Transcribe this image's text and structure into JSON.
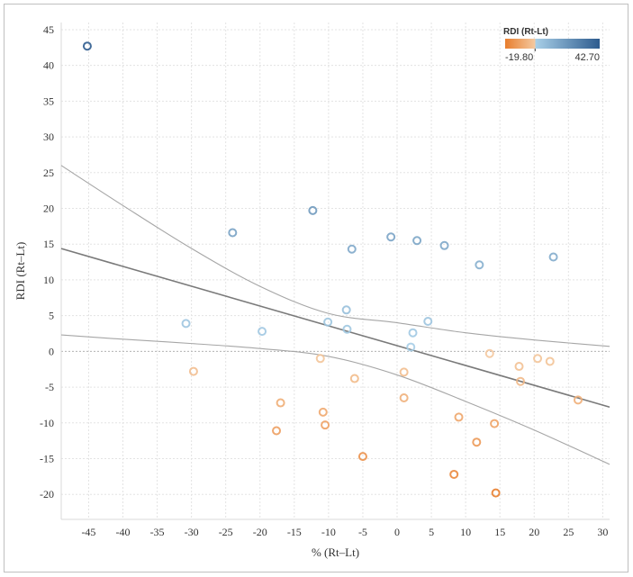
{
  "chart_data": {
    "type": "scatter",
    "title": "",
    "xlabel": "% (Rt–Lt)",
    "ylabel": "RDI (Rt–Lt)",
    "xlim": [
      -49,
      31
    ],
    "ylim": [
      -23.5,
      46
    ],
    "xticks": [
      -45,
      -40,
      -35,
      -30,
      -25,
      -20,
      -15,
      -10,
      -5,
      0,
      5,
      10,
      15,
      20,
      25,
      30
    ],
    "yticks": [
      -20,
      -15,
      -10,
      -5,
      0,
      5,
      10,
      15,
      20,
      25,
      30,
      35,
      40,
      45
    ],
    "xtick_labels": [
      "-45",
      "-40",
      "-35",
      "-30",
      "-25",
      "-20",
      "-15",
      "-10",
      "-5",
      "0",
      "5",
      "10",
      "15",
      "20",
      "25",
      "30"
    ],
    "ytick_labels": [
      "-20",
      "-15",
      "-10",
      "-5",
      "0",
      "5",
      "10",
      "15",
      "20",
      "25",
      "30",
      "35",
      "40",
      "45"
    ],
    "grid": true,
    "series": [
      {
        "name": "RDI (Rt-Lt)",
        "x": [
          -45.2,
          -24.0,
          -12.3,
          -6.6,
          -0.9,
          2.9,
          6.9,
          12.0,
          22.8,
          -30.8,
          -19.7,
          -10.1,
          -7.4,
          -7.3,
          2.3,
          4.5,
          2.0,
          13.5,
          -11.2,
          -29.7,
          -6.2,
          1.0,
          17.8,
          20.5,
          22.3,
          18.0,
          -17.0,
          1.0,
          26.4,
          -10.8,
          -10.5,
          -17.6,
          9.0,
          14.2,
          11.6,
          -5.0,
          8.3,
          14.4
        ],
        "y": [
          42.7,
          16.6,
          19.7,
          14.3,
          16.0,
          15.5,
          14.8,
          12.1,
          13.2,
          3.9,
          2.8,
          4.1,
          5.8,
          3.1,
          2.6,
          4.2,
          0.6,
          -0.3,
          -1.0,
          -2.8,
          -3.8,
          -2.9,
          -2.1,
          -1.0,
          -1.4,
          -4.2,
          -7.2,
          -6.5,
          -6.8,
          -8.5,
          -10.3,
          -11.1,
          -9.2,
          -10.1,
          -12.7,
          -14.7,
          -17.2,
          -19.8
        ]
      }
    ],
    "regression": {
      "slope": -0.2771,
      "intercept": 0.8
    },
    "confidence_band": {
      "upper": {
        "x": [
          -49,
          -40,
          -30,
          -20,
          -10,
          0,
          10,
          20,
          31
        ],
        "y": [
          26.0,
          20.4,
          14.4,
          9.1,
          5.3,
          4.0,
          2.6,
          1.6,
          0.7
        ]
      },
      "lower": {
        "x": [
          -49,
          -40,
          -30,
          -20,
          -10,
          0,
          10,
          20,
          31
        ],
        "y": [
          2.3,
          1.7,
          1.1,
          0.4,
          -0.7,
          -3.3,
          -7.0,
          -11.0,
          -15.8
        ]
      }
    },
    "legend": {
      "title": "RDI (Rt-Lt)",
      "min_label": "-19.80",
      "max_label": "42.70",
      "min": -19.8,
      "max": 42.7,
      "placement": "top-right",
      "colors": [
        "#e87e2e",
        "#f4c9a0",
        "#a9d0e8",
        "#2d5b8e"
      ]
    },
    "colors": {
      "regression_line": "#7a7a7a",
      "band_line": "#a6a6a6",
      "grid": "#e3e3e3",
      "zero_line": "#b5b5b5"
    }
  }
}
